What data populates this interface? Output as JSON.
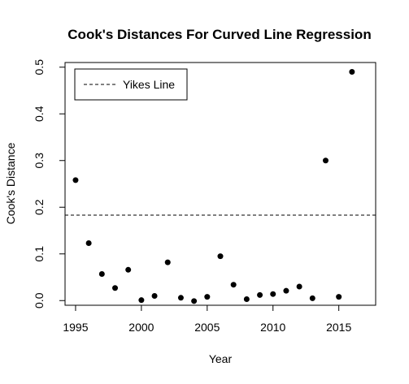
{
  "chart_data": {
    "type": "scatter",
    "title": "Cook's Distances For Curved Line Regression",
    "xlabel": "Year",
    "ylabel": "Cook's Distance",
    "xlim": [
      1994.2,
      2017.8
    ],
    "ylim": [
      -0.01,
      0.51
    ],
    "x_ticks": [
      "1995",
      "2000",
      "2005",
      "2010",
      "2015"
    ],
    "y_ticks": [
      "0.0",
      "0.1",
      "0.2",
      "0.3",
      "0.4",
      "0.5"
    ],
    "series": [
      {
        "x": [
          1995,
          1996,
          1997,
          1998,
          1999,
          2000,
          2001,
          2002,
          2003,
          2004,
          2005,
          2006,
          2007,
          2008,
          2009,
          2010,
          2011,
          2012,
          2013,
          2014,
          2015,
          2016
        ],
        "y": [
          0.258,
          0.123,
          0.057,
          0.027,
          0.066,
          0.001,
          0.01,
          0.082,
          0.006,
          -0.001,
          0.008,
          0.095,
          0.034,
          0.003,
          0.012,
          0.014,
          0.021,
          0.03,
          0.005,
          0.3,
          0.008,
          0.49
        ],
        "color": "#000000"
      }
    ],
    "reference_line": {
      "y": 0.183,
      "style": "dashed",
      "label": "Yikes Line"
    },
    "legend": {
      "position": "top-left",
      "entries": [
        "Yikes Line"
      ]
    },
    "grid": false
  }
}
